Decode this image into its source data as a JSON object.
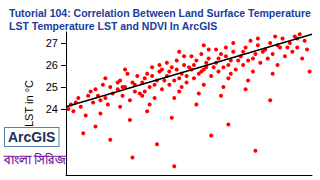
{
  "chart_data": {
    "type": "scatter",
    "title": "Tutorial 104: Correlation Between Land Surface Temperature LST Temperature LST and NDVI In ArcGIS",
    "y_label": "LST in °C",
    "annotations": [
      "ArcGIS",
      "বাংলা সিরিজ"
    ],
    "xlim": [
      0,
      1
    ],
    "ylim": [
      21,
      27.5
    ],
    "yticks": [
      24,
      25,
      26,
      27
    ],
    "grid": false,
    "tick_labels": "y",
    "series": [
      {
        "type": "scatter",
        "color": "#ff0000",
        "marker": "circle",
        "x": [
          0.02,
          0.03,
          0.05,
          0.06,
          0.08,
          0.09,
          0.04,
          0.07,
          0.01,
          0.1,
          0.11,
          0.12,
          0.13,
          0.14,
          0.15,
          0.16,
          0.17,
          0.18,
          0.19,
          0.12,
          0.16,
          0.14,
          0.18,
          0.21,
          0.22,
          0.23,
          0.24,
          0.25,
          0.26,
          0.27,
          0.28,
          0.29,
          0.22,
          0.24,
          0.26,
          0.28,
          0.23,
          0.27,
          0.3,
          0.21,
          0.31,
          0.32,
          0.33,
          0.34,
          0.35,
          0.36,
          0.37,
          0.38,
          0.39,
          0.32,
          0.34,
          0.36,
          0.38,
          0.33,
          0.35,
          0.37,
          0.4,
          0.31,
          0.39,
          0.41,
          0.42,
          0.43,
          0.44,
          0.45,
          0.46,
          0.47,
          0.48,
          0.49,
          0.42,
          0.44,
          0.46,
          0.48,
          0.43,
          0.45,
          0.47,
          0.41,
          0.49,
          0.44,
          0.5,
          0.46,
          0.51,
          0.52,
          0.53,
          0.54,
          0.55,
          0.56,
          0.57,
          0.58,
          0.59,
          0.52,
          0.54,
          0.56,
          0.58,
          0.53,
          0.55,
          0.57,
          0.51,
          0.59,
          0.6,
          0.56,
          0.61,
          0.62,
          0.63,
          0.64,
          0.65,
          0.66,
          0.67,
          0.68,
          0.69,
          0.62,
          0.64,
          0.66,
          0.68,
          0.63,
          0.65,
          0.67,
          0.61,
          0.7,
          0.66,
          0.71,
          0.72,
          0.73,
          0.74,
          0.75,
          0.76,
          0.77,
          0.78,
          0.79,
          0.72,
          0.74,
          0.76,
          0.78,
          0.73,
          0.8,
          0.77,
          0.81,
          0.82,
          0.83,
          0.84,
          0.85,
          0.86,
          0.87,
          0.88,
          0.89,
          0.84,
          0.86,
          0.9,
          0.83,
          0.91,
          0.92,
          0.93,
          0.94,
          0.95,
          0.96,
          0.97,
          0.98,
          0.99,
          0.94
        ],
        "values": [
          24.2,
          23.9,
          24.5,
          24.1,
          23.7,
          24.6,
          24.3,
          22.9,
          24.0,
          24.8,
          24.3,
          24.9,
          24.6,
          23.8,
          25.1,
          24.5,
          24.2,
          25.0,
          24.7,
          23.2,
          25.4,
          24.4,
          22.6,
          24.9,
          25.3,
          24.6,
          25.0,
          25.6,
          24.4,
          25.2,
          24.8,
          25.5,
          24.1,
          25.8,
          23.5,
          25.1,
          25.0,
          21.8,
          24.7,
          25.2,
          25.2,
          24.8,
          25.6,
          25.0,
          25.9,
          24.5,
          25.3,
          25.7,
          24.9,
          25.4,
          24.2,
          25.1,
          26.0,
          23.9,
          25.5,
          22.4,
          25.3,
          24.6,
          25.8,
          25.5,
          25.1,
          25.9,
          25.3,
          26.2,
          24.8,
          25.6,
          26.0,
          25.2,
          25.7,
          24.5,
          25.4,
          26.4,
          23.6,
          25.8,
          25.0,
          26.1,
          25.5,
          21.4,
          25.9,
          26.6,
          25.8,
          25.4,
          26.2,
          25.6,
          26.5,
          25.1,
          25.9,
          26.3,
          25.5,
          26.0,
          24.7,
          25.8,
          26.7,
          24.2,
          25.7,
          26.1,
          26.4,
          22.8,
          25.9,
          26.9,
          26.1,
          25.7,
          26.5,
          25.9,
          26.8,
          25.4,
          26.2,
          26.6,
          25.8,
          26.3,
          25.0,
          26.0,
          27.0,
          24.6,
          26.4,
          25.6,
          26.7,
          26.2,
          23.3,
          26.4,
          26.0,
          26.8,
          26.2,
          27.1,
          25.7,
          26.5,
          26.9,
          26.1,
          26.6,
          25.3,
          26.3,
          27.2,
          24.9,
          26.6,
          22.1,
          26.7,
          26.3,
          27.0,
          26.5,
          27.3,
          26.0,
          26.8,
          27.2,
          26.4,
          25.6,
          26.9,
          26.8,
          24.4,
          27.0,
          26.6,
          27.3,
          26.8,
          27.4,
          26.3,
          27.1,
          26.7,
          25.7,
          27.2
        ]
      },
      {
        "type": "line",
        "color": "#000000",
        "line_style": "solid",
        "x": [
          0,
          1
        ],
        "values": [
          24.1,
          27.4
        ]
      }
    ]
  }
}
